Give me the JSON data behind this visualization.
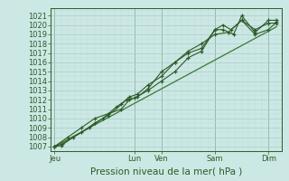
{
  "background_color": "#cce8e4",
  "grid_major_color": "#aaccca",
  "grid_minor_color": "#bbdad8",
  "line_color": "#2d5a27",
  "trend_color": "#3a7a30",
  "ylabel_values": [
    1007,
    1008,
    1009,
    1010,
    1011,
    1012,
    1013,
    1014,
    1015,
    1016,
    1017,
    1018,
    1019,
    1020,
    1021
  ],
  "ylim": [
    1006.5,
    1021.8
  ],
  "xlabel": "Pression niveau de la mer( hPa )",
  "xlabel_fontsize": 7.5,
  "tick_fontsize": 6.0,
  "xtick_labels": [
    "Jeu",
    "Lun",
    "Ven",
    "Sam",
    "Dim"
  ],
  "xtick_positions": [
    0,
    3,
    4,
    6,
    8
  ],
  "xlim": [
    -0.15,
    8.5
  ],
  "series1_x": [
    0,
    0.25,
    0.7,
    1.3,
    1.8,
    2.3,
    2.7,
    3.0,
    3.5,
    4.0,
    4.5,
    5.0,
    5.5,
    6.0,
    6.3,
    6.7,
    7.0,
    7.5,
    8.0,
    8.3
  ],
  "series1_y": [
    1007.0,
    1007.1,
    1008.0,
    1009.0,
    1010.0,
    1011.2,
    1012.0,
    1012.2,
    1013.0,
    1014.0,
    1015.0,
    1016.5,
    1017.2,
    1019.5,
    1019.5,
    1019.0,
    1021.0,
    1019.2,
    1020.5,
    1020.5
  ],
  "series2_x": [
    0,
    0.3,
    1.0,
    1.5,
    2.0,
    2.5,
    2.8,
    3.1,
    3.5,
    4.0,
    4.5,
    5.0,
    5.5,
    6.0,
    6.3,
    6.6,
    7.0,
    7.5,
    8.0,
    8.3
  ],
  "series2_y": [
    1007.0,
    1007.3,
    1008.5,
    1009.5,
    1010.3,
    1011.5,
    1012.3,
    1012.6,
    1013.6,
    1014.5,
    1016.0,
    1017.0,
    1017.5,
    1019.5,
    1020.0,
    1019.5,
    1020.5,
    1019.0,
    1019.5,
    1020.3
  ],
  "series3_x": [
    0,
    0.5,
    1.0,
    1.5,
    2.0,
    2.5,
    2.8,
    3.1,
    3.5,
    4.0,
    4.5,
    5.0,
    5.5,
    6.0,
    6.5,
    7.0,
    7.5,
    8.0,
    8.3
  ],
  "series3_y": [
    1007.0,
    1008.0,
    1009.0,
    1010.0,
    1010.5,
    1011.0,
    1012.0,
    1012.3,
    1013.2,
    1015.0,
    1016.0,
    1017.2,
    1018.0,
    1019.0,
    1019.2,
    1020.5,
    1019.5,
    1020.2,
    1020.2
  ],
  "trend_x": [
    0,
    8.3
  ],
  "trend_y": [
    1007.0,
    1019.8
  ],
  "figwidth": 3.2,
  "figheight": 2.0,
  "dpi": 100
}
